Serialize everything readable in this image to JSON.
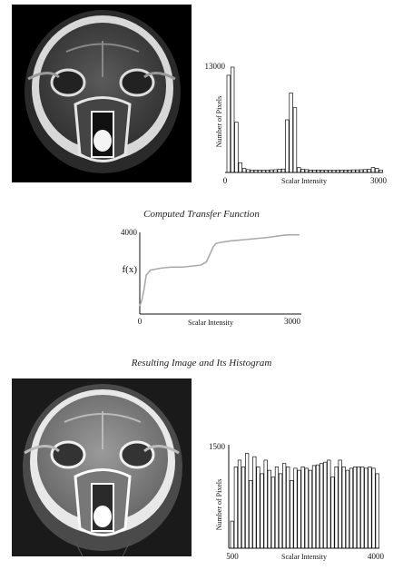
{
  "figure": {
    "transfer_caption": "Computed Transfer Function",
    "result_caption": "Resulting Image and Its Histogram"
  },
  "chart_data": [
    {
      "type": "bar",
      "xlabel": "Scalar Intensity",
      "ylabel": "Number of Pixels",
      "xlim": [
        0,
        3000
      ],
      "ylim": [
        0,
        13000
      ],
      "x_ticks": [
        "0",
        "3000"
      ],
      "y_ticks": [
        "13000"
      ],
      "bin_width": 75,
      "values": [
        12000,
        13000,
        6200,
        1200,
        500,
        350,
        300,
        300,
        280,
        280,
        300,
        320,
        340,
        380,
        420,
        6500,
        9800,
        8000,
        600,
        400,
        350,
        300,
        300,
        300,
        300,
        280,
        280,
        280,
        300,
        300,
        300,
        300,
        320,
        320,
        340,
        360,
        380,
        600,
        500,
        300
      ]
    },
    {
      "type": "line",
      "ylabel": "f(x)",
      "xlim": [
        0,
        3000
      ],
      "ylim": [
        0,
        4000
      ],
      "x_ticks": [
        "0",
        "3000"
      ],
      "y_ticks": [
        "4000"
      ],
      "xlabel": "Scalar Intensity",
      "x": [
        0,
        40,
        80,
        120,
        200,
        400,
        600,
        800,
        1000,
        1150,
        1250,
        1330,
        1380,
        1430,
        1500,
        1700,
        2000,
        2400,
        2700,
        2850,
        3000
      ],
      "y": [
        400,
        700,
        1200,
        1900,
        2150,
        2250,
        2300,
        2300,
        2350,
        2400,
        2550,
        3000,
        3300,
        3450,
        3500,
        3580,
        3650,
        3750,
        3860,
        3880,
        3880
      ]
    },
    {
      "type": "bar",
      "xlabel": "Scalar Intensity",
      "ylabel": "Number of Pixels",
      "xlim": [
        500,
        4000
      ],
      "ylim": [
        0,
        1500
      ],
      "x_ticks": [
        "500",
        "4000"
      ],
      "y_ticks": [
        "1500"
      ],
      "bin_width": 87.5,
      "values": [
        400,
        1200,
        1300,
        1200,
        1400,
        1000,
        1350,
        1200,
        1100,
        1300,
        1150,
        1050,
        1200,
        1100,
        1250,
        1200,
        1000,
        1180,
        1150,
        1200,
        1180,
        1150,
        1220,
        1230,
        1250,
        1270,
        1300,
        1050,
        1200,
        1300,
        1200,
        1150,
        1180,
        1200,
        1200,
        1200,
        1180,
        1200,
        1180,
        1100
      ]
    }
  ]
}
